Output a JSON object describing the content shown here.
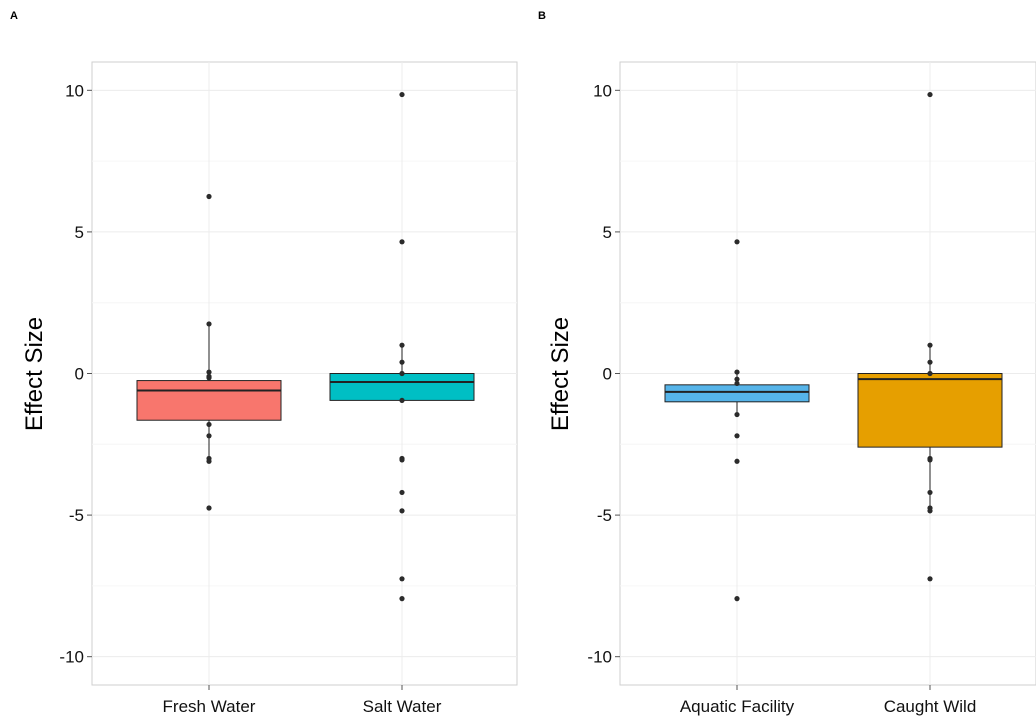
{
  "chart_data": [
    {
      "type": "box",
      "panel_label": "A",
      "ylabel": "Effect Size",
      "xlabel": "",
      "ylim": [
        -11,
        11
      ],
      "yticks": [
        -10,
        -5,
        0,
        5,
        10
      ],
      "ytick_labels": [
        "-10",
        "-5",
        "0",
        "5",
        "10"
      ],
      "grid": true,
      "categories": [
        "Fresh Water",
        "Salt Water"
      ],
      "colors": [
        "#F8766D",
        "#00BFC4"
      ],
      "boxes": [
        {
          "q1": -1.65,
          "median": -0.6,
          "q3": -0.25,
          "whisker_low": -3.1,
          "whisker_high": 1.75
        },
        {
          "q1": -0.95,
          "median": -0.3,
          "q3": 0.0,
          "whisker_low": -0.95,
          "whisker_high": 1.0
        }
      ],
      "points": [
        [
          6.25,
          1.75,
          0.05,
          -0.1,
          -0.15,
          -1.8,
          -2.2,
          -3.0,
          -3.1,
          -4.75
        ],
        [
          9.85,
          4.65,
          1.0,
          0.4,
          0.0,
          -0.95,
          -3.0,
          -3.05,
          -4.2,
          -4.85,
          -7.25,
          -7.95
        ]
      ]
    },
    {
      "type": "box",
      "panel_label": "B",
      "ylabel": "Effect Size",
      "xlabel": "",
      "ylim": [
        -11,
        11
      ],
      "yticks": [
        -10,
        -5,
        0,
        5,
        10
      ],
      "ytick_labels": [
        "-10",
        "-5",
        "0",
        "5",
        "10"
      ],
      "grid": true,
      "categories": [
        "Aquatic Facility",
        "Caught Wild"
      ],
      "colors": [
        "#56B4E9",
        "#E69F00"
      ],
      "boxes": [
        {
          "q1": -1.0,
          "median": -0.65,
          "q3": -0.4,
          "whisker_low": -1.45,
          "whisker_high": 0.05
        },
        {
          "q1": -2.6,
          "median": -0.2,
          "q3": 0.0,
          "whisker_low": -4.8,
          "whisker_high": 1.0
        }
      ],
      "points": [
        [
          4.65,
          0.05,
          -0.2,
          -0.35,
          -1.45,
          -2.2,
          -3.1,
          -7.95
        ],
        [
          9.85,
          1.0,
          0.4,
          0.0,
          -3.0,
          -3.05,
          -4.2,
          -4.75,
          -4.85,
          -7.25
        ]
      ]
    }
  ]
}
